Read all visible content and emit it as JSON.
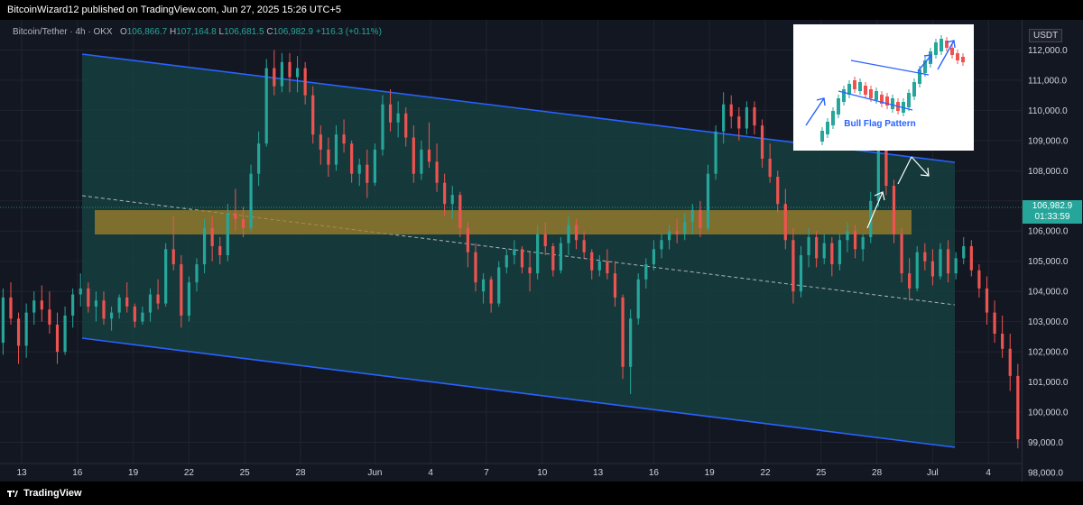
{
  "header": {
    "author": "BitcoinWizard12",
    "published_text": "BitcoinWizard12 published on TradingView.com, Jun 27, 2025 15:26 UTC+5"
  },
  "legend": {
    "symbol": "Bitcoin/Tether · 4h · OKX",
    "open_label": "O",
    "open": "106,866.7",
    "high_label": "H",
    "high": "107,164.8",
    "low_label": "L",
    "low": "106,681.5",
    "close_label": "C",
    "close": "106,982.9",
    "change": "+116.3 (+0.11%)"
  },
  "price_axis": {
    "currency": "USDT",
    "current_price": "106,982.9",
    "countdown": "01:33:59",
    "tick_labels": [
      "112,000.0",
      "111,000.0",
      "110,000.0",
      "109,000.0",
      "108,000.0",
      "106,000.0",
      "105,000.0",
      "104,000.0",
      "103,000.0",
      "102,000.0",
      "101,000.0",
      "100,000.0",
      "99,000.0",
      "98,000.0"
    ]
  },
  "inset": {
    "caption": "Bull Flag Pattern"
  },
  "footer": {
    "brand": "TradingView"
  },
  "colors": {
    "up": "#26a69a",
    "down": "#ef5350",
    "channel": "#2962ff",
    "channel_fill": "#1b4d4a",
    "zone": "#a2822b",
    "background": "#131722"
  },
  "chart_data": {
    "type": "candlestick",
    "timeframe": "4h",
    "ylim": [
      97700,
      113000
    ],
    "y_ticks": [
      98000,
      99000,
      100000,
      101000,
      102000,
      103000,
      104000,
      105000,
      106000,
      107000,
      108000,
      109000,
      110000,
      111000,
      112000
    ],
    "x_ticks": [
      "13",
      "16",
      "19",
      "22",
      "25",
      "28",
      "Jun",
      "4",
      "7",
      "10",
      "13",
      "16",
      "19",
      "22",
      "25",
      "28",
      "Jul",
      "4"
    ],
    "x_tick_dates": [
      "2025-05-13",
      "2025-05-16",
      "2025-05-19",
      "2025-05-22",
      "2025-05-25",
      "2025-05-28",
      "2025-06-01",
      "2025-06-04",
      "2025-06-07",
      "2025-06-10",
      "2025-06-13",
      "2025-06-16",
      "2025-06-19",
      "2025-06-22",
      "2025-06-25",
      "2025-06-28",
      "2025-07-01",
      "2025-07-04"
    ],
    "start_date": "2025-05-12",
    "x_end_date": "2025-07-06",
    "last_price": 106982.9,
    "ohlc": [
      [
        102300,
        104100,
        101900,
        103800
      ],
      [
        103800,
        104300,
        102900,
        103100
      ],
      [
        103100,
        103300,
        101600,
        102200
      ],
      [
        102200,
        103600,
        101800,
        103300
      ],
      [
        103300,
        104000,
        102900,
        103700
      ],
      [
        103700,
        104200,
        103000,
        103400
      ],
      [
        103400,
        104000,
        102600,
        102900
      ],
      [
        102900,
        103300,
        101600,
        102000
      ],
      [
        102000,
        103500,
        101900,
        103200
      ],
      [
        103200,
        104100,
        102800,
        103900
      ],
      [
        103900,
        104600,
        103500,
        104100
      ],
      [
        104100,
        104300,
        103300,
        103500
      ],
      [
        103500,
        104000,
        103000,
        103700
      ],
      [
        103700,
        104000,
        102900,
        103100
      ],
      [
        103100,
        103500,
        102700,
        103300
      ],
      [
        103300,
        103900,
        103100,
        103800
      ],
      [
        103800,
        104300,
        103300,
        103500
      ],
      [
        103500,
        103600,
        102800,
        103000
      ],
      [
        103000,
        103500,
        102900,
        103300
      ],
      [
        103300,
        104100,
        103000,
        103900
      ],
      [
        103900,
        104400,
        103400,
        103600
      ],
      [
        103600,
        105600,
        103500,
        105400
      ],
      [
        105400,
        106500,
        104700,
        104900
      ],
      [
        104900,
        105200,
        102800,
        103200
      ],
      [
        103200,
        104500,
        103000,
        104300
      ],
      [
        104300,
        105100,
        104000,
        104900
      ],
      [
        104900,
        106400,
        104600,
        106100
      ],
      [
        106100,
        106500,
        105000,
        105500
      ],
      [
        105500,
        105800,
        104900,
        105200
      ],
      [
        105200,
        106900,
        105000,
        106600
      ],
      [
        106600,
        107400,
        106000,
        106400
      ],
      [
        106400,
        106800,
        105800,
        106100
      ],
      [
        106100,
        108200,
        106000,
        107900
      ],
      [
        107900,
        109300,
        107500,
        108900
      ],
      [
        108900,
        111700,
        108800,
        111400
      ],
      [
        111400,
        112000,
        110500,
        110800
      ],
      [
        110800,
        111900,
        110600,
        111600
      ],
      [
        111600,
        111900,
        110600,
        111100
      ],
      [
        111100,
        111800,
        110600,
        111400
      ],
      [
        111400,
        111600,
        110200,
        110500
      ],
      [
        110500,
        110800,
        108900,
        109200
      ],
      [
        109200,
        109500,
        108200,
        108700
      ],
      [
        108700,
        109100,
        107800,
        108200
      ],
      [
        108200,
        109500,
        108000,
        109200
      ],
      [
        109200,
        109700,
        108600,
        108900
      ],
      [
        108900,
        109000,
        107600,
        107900
      ],
      [
        107900,
        108400,
        107500,
        108200
      ],
      [
        108200,
        108700,
        107100,
        107600
      ],
      [
        107600,
        108900,
        107500,
        108700
      ],
      [
        108700,
        110500,
        108500,
        110200
      ],
      [
        110200,
        110700,
        109300,
        109600
      ],
      [
        109600,
        110300,
        109100,
        109900
      ],
      [
        109900,
        110100,
        108800,
        109100
      ],
      [
        109100,
        109500,
        107600,
        107900
      ],
      [
        107900,
        109000,
        107700,
        108700
      ],
      [
        108700,
        109600,
        108100,
        108300
      ],
      [
        108300,
        108900,
        107300,
        107600
      ],
      [
        107600,
        107900,
        106500,
        106900
      ],
      [
        106900,
        107500,
        106400,
        107200
      ],
      [
        107200,
        107300,
        105800,
        106100
      ],
      [
        106100,
        106300,
        104800,
        105300
      ],
      [
        105300,
        105600,
        104000,
        104300
      ],
      [
        104000,
        104600,
        103600,
        104400
      ],
      [
        104400,
        104500,
        103300,
        103600
      ],
      [
        103600,
        105000,
        103500,
        104800
      ],
      [
        104800,
        105400,
        104600,
        105200
      ],
      [
        105200,
        105700,
        104900,
        105400
      ],
      [
        105400,
        105500,
        104600,
        104800
      ],
      [
        104800,
        105300,
        104000,
        104600
      ],
      [
        104600,
        106200,
        104400,
        105900
      ],
      [
        105900,
        106300,
        105200,
        105500
      ],
      [
        105500,
        105600,
        104500,
        104700
      ],
      [
        104700,
        105800,
        104600,
        105600
      ],
      [
        105600,
        106500,
        105200,
        106200
      ],
      [
        106200,
        106400,
        105400,
        105700
      ],
      [
        105700,
        106000,
        105100,
        105300
      ],
      [
        105300,
        105400,
        104400,
        104700
      ],
      [
        104700,
        105200,
        104500,
        105000
      ],
      [
        105000,
        105400,
        104400,
        104600
      ],
      [
        104600,
        105000,
        103500,
        103800
      ],
      [
        103800,
        103900,
        101100,
        101500
      ],
      [
        101500,
        103400,
        100600,
        103100
      ],
      [
        103100,
        104600,
        102900,
        104400
      ],
      [
        104400,
        105100,
        104100,
        104900
      ],
      [
        104900,
        105700,
        104700,
        105400
      ],
      [
        105400,
        105900,
        105100,
        105700
      ],
      [
        105700,
        106200,
        105400,
        106000
      ],
      [
        106000,
        106400,
        105600,
        105900
      ],
      [
        105900,
        106600,
        105700,
        106300
      ],
      [
        106300,
        106900,
        105900,
        106700
      ],
      [
        106700,
        107000,
        105800,
        106100
      ],
      [
        106100,
        108200,
        106000,
        107900
      ],
      [
        107900,
        109500,
        107700,
        109300
      ],
      [
        109300,
        110600,
        108900,
        110200
      ],
      [
        110200,
        110500,
        109400,
        109800
      ],
      [
        109800,
        110100,
        109000,
        109400
      ],
      [
        109400,
        110300,
        109200,
        110100
      ],
      [
        110100,
        110300,
        109200,
        109500
      ],
      [
        109500,
        109700,
        108100,
        108400
      ],
      [
        108400,
        108900,
        107600,
        107800
      ],
      [
        107800,
        108000,
        106600,
        106900
      ],
      [
        106900,
        107400,
        105400,
        105700
      ],
      [
        105700,
        106100,
        103600,
        104000
      ],
      [
        104000,
        105500,
        103800,
        105200
      ],
      [
        105200,
        106100,
        104800,
        105800
      ],
      [
        105800,
        106000,
        104800,
        105100
      ],
      [
        105100,
        105900,
        104900,
        105600
      ],
      [
        105600,
        105800,
        104500,
        104900
      ],
      [
        104900,
        105900,
        104700,
        105700
      ],
      [
        105700,
        106300,
        105300,
        106000
      ],
      [
        106000,
        106200,
        105100,
        105400
      ],
      [
        105400,
        105900,
        105000,
        105800
      ],
      [
        105800,
        107300,
        105600,
        107000
      ],
      [
        107000,
        108900,
        106800,
        108700
      ],
      [
        108700,
        108900,
        107200,
        107500
      ],
      [
        107500,
        107700,
        105600,
        105900
      ],
      [
        105900,
        106100,
        104300,
        104600
      ],
      [
        104600,
        105100,
        103700,
        104100
      ],
      [
        104100,
        105500,
        104000,
        105300
      ],
      [
        105300,
        105600,
        104700,
        105000
      ],
      [
        105000,
        105400,
        104200,
        104500
      ],
      [
        104500,
        105600,
        104400,
        105400
      ],
      [
        105400,
        105700,
        104300,
        104600
      ],
      [
        104600,
        105300,
        104400,
        105100
      ],
      [
        105100,
        105800,
        104900,
        105500
      ],
      [
        105500,
        105700,
        104500,
        104700
      ],
      [
        104700,
        104900,
        103800,
        104100
      ],
      [
        104100,
        104500,
        102900,
        103300
      ],
      [
        103300,
        103700,
        102300,
        102600
      ],
      [
        102600,
        103200,
        101800,
        102100
      ],
      [
        102100,
        102600,
        100700,
        101200
      ],
      [
        101200,
        101600,
        98800,
        99100
      ],
      [
        99100,
        101000,
        98500,
        100800
      ],
      [
        100800,
        103100,
        100500,
        102800
      ],
      [
        102800,
        104900,
        102700,
        104700
      ],
      [
        104700,
        105900,
        104600,
        105700
      ],
      [
        105700,
        106200,
        105300,
        106000
      ],
      [
        106000,
        106400,
        105800,
        106300
      ],
      [
        106300,
        107000,
        105900,
        106700
      ],
      [
        106700,
        107900,
        106600,
        107800
      ],
      [
        107800,
        108100,
        106900,
        107100
      ],
      [
        107100,
        107600,
        106600,
        107400
      ],
      [
        107400,
        107700,
        106700,
        106900
      ],
      [
        106900,
        107200,
        106700,
        106983
      ]
    ]
  }
}
